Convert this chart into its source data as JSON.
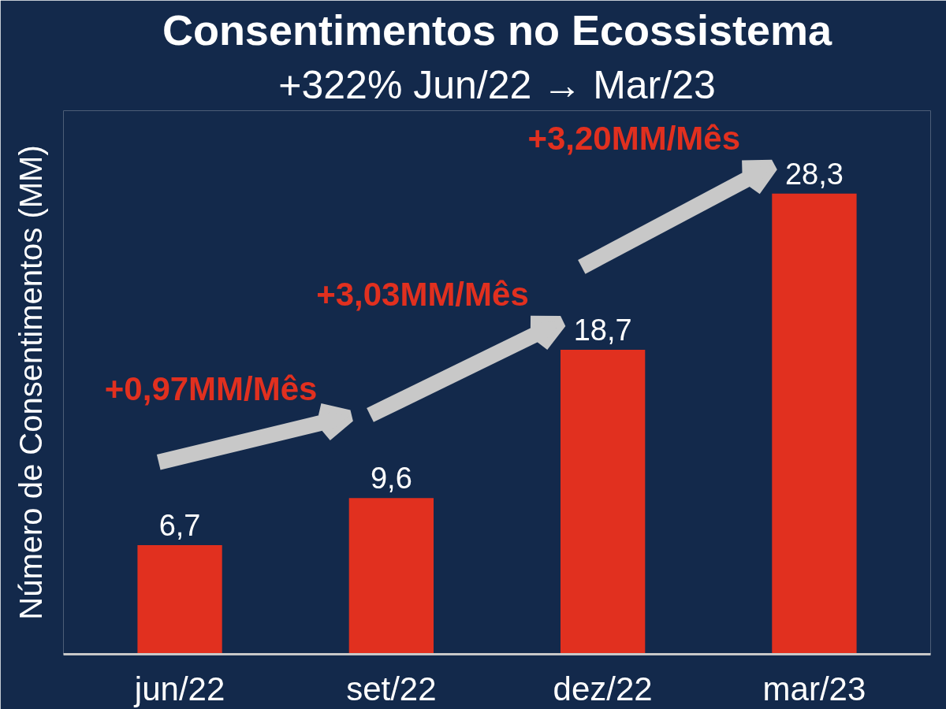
{
  "chart_data": {
    "type": "bar",
    "title": "Consentimentos no Ecossistema",
    "subtitle": "+322% Jun/22 → Mar/23",
    "ylabel": "Número de Consentimentos (MM)",
    "categories": [
      "jun/22",
      "set/22",
      "dez/22",
      "mar/23"
    ],
    "values": [
      6.7,
      9.6,
      18.7,
      28.3
    ],
    "value_labels": [
      "6,7",
      "9,6",
      "18,7",
      "28,3"
    ],
    "color": "#e1301f",
    "annotations": [
      "+0,97MM/Mês",
      "+3,03MM/Mês",
      "+3,20MM/Mês"
    ]
  }
}
